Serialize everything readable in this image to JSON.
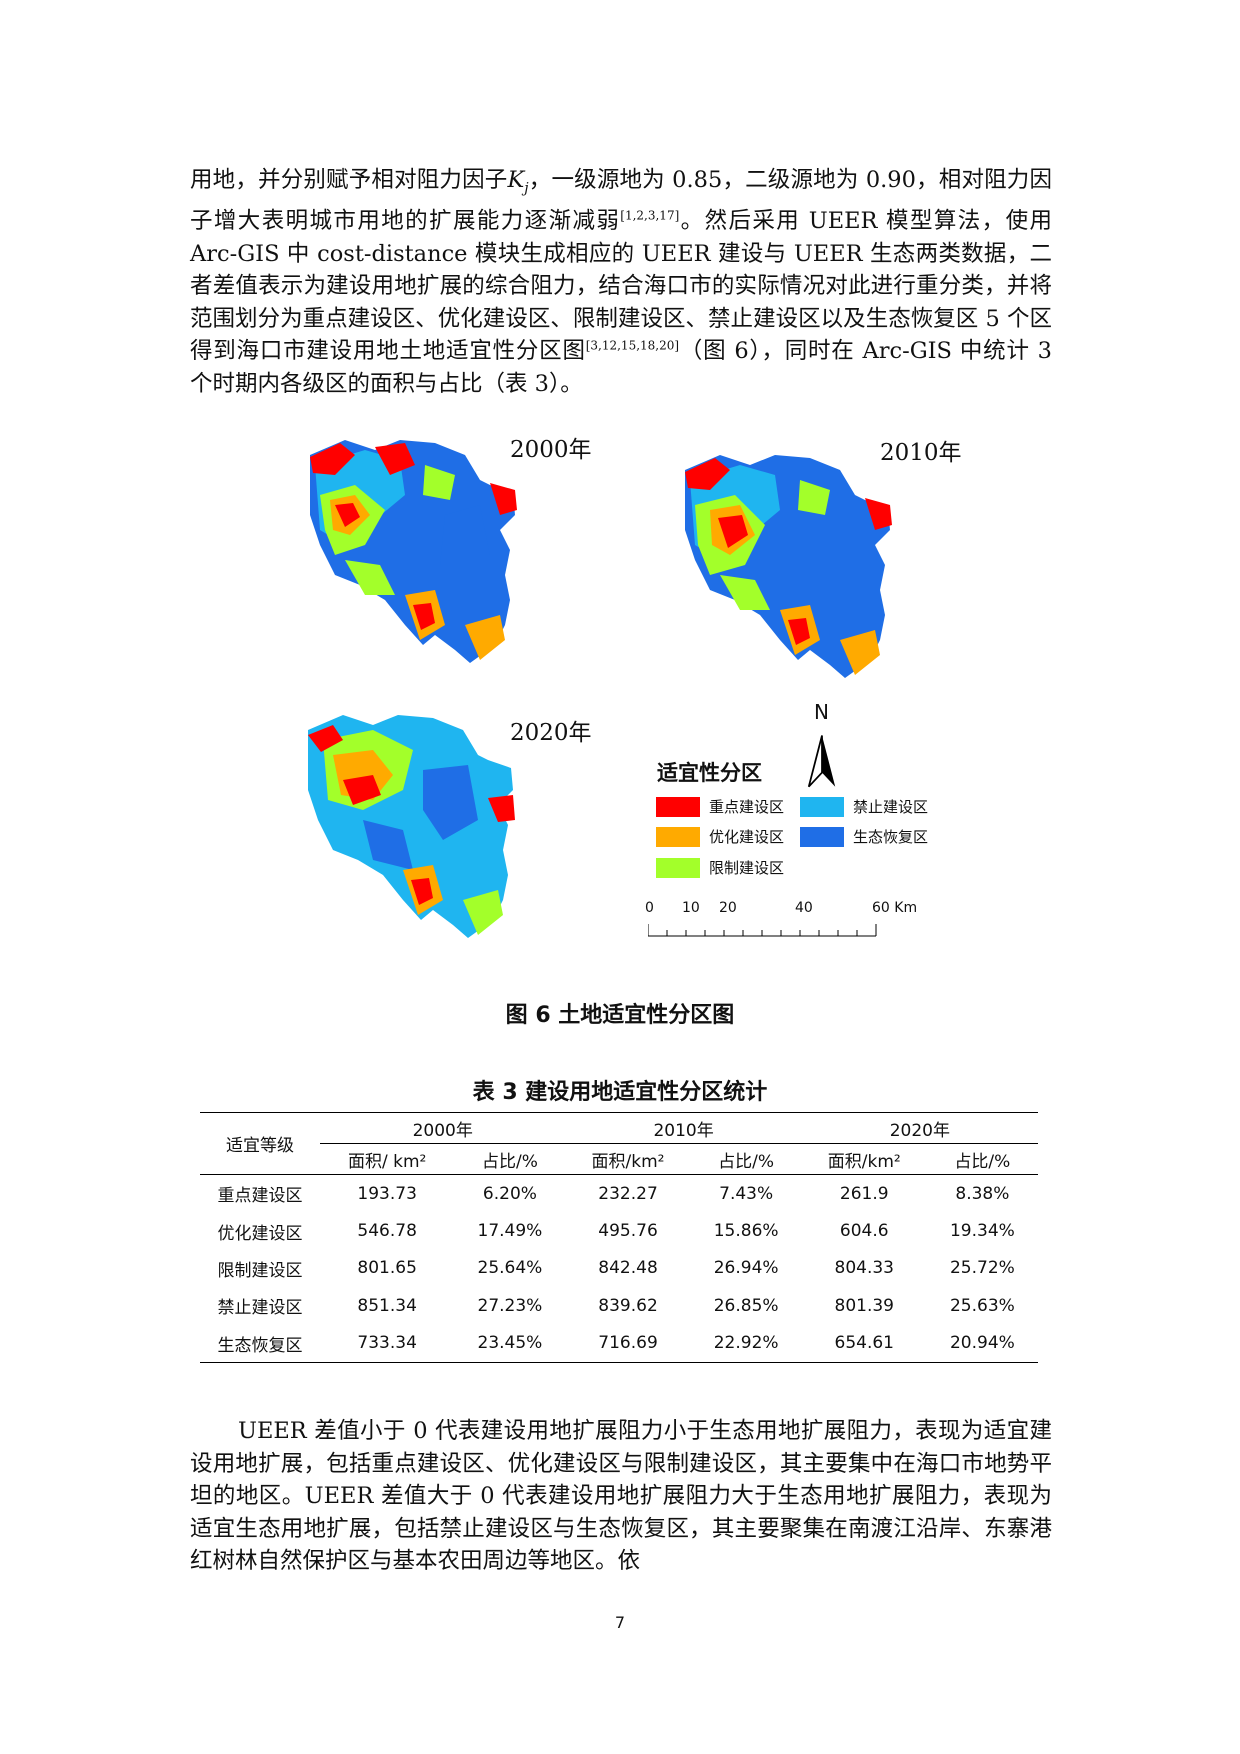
{
  "paragraph1": {
    "part1": "用地，并分别赋予相对阻力因子",
    "k_symbol": "K",
    "k_subscript": "j",
    "part2": "，一级源地为 0.85，二级源地为 0.90，相对阻力因子增大表明城市用地的扩展能力逐渐减弱",
    "ref1": "[1,2,3,17]",
    "part3": "。然后采用 UEER 模型算法，使用 Arc-GIS 中 cost-distance 模块生成相应的 UEER 建设与 UEER 生态两类数据，二者差值表示为建设用地扩展的综合阻力，结合海口市的实际情况对此进行重分类，并将范围划分为重点建设区、优化建设区、限制建设区、禁止建设区以及生态恢复区 5 个区得到海口市建设用地土地适宜性分区图",
    "ref2": "[3,12,15,18,20]",
    "part4": "（图 6），同时在 Arc-GIS 中统计 3 个时期内各级区的面积与占比（表 3）。"
  },
  "figure": {
    "map_labels": [
      "2000年",
      "2010年",
      "2020年"
    ],
    "north_label": "N",
    "legend_title": "适宜性分区",
    "legend": [
      {
        "label": "重点建设区",
        "color": "#ff0000"
      },
      {
        "label": "优化建设区",
        "color": "#ffaa00"
      },
      {
        "label": "限制建设区",
        "color": "#a3ff2a"
      },
      {
        "label": "禁止建设区",
        "color": "#1fb5f0"
      },
      {
        "label": "生态恢复区",
        "color": "#1f6ee6"
      }
    ],
    "scale_ticks": [
      "0",
      "10",
      "20",
      "40",
      "60 Km"
    ],
    "caption": "图 6 土地适宜性分区图"
  },
  "table": {
    "caption": "表 3 建设用地适宜性分区统计",
    "row_header": "适宜等级",
    "years": [
      "2000年",
      "2010年",
      "2020年"
    ],
    "sub_headers": [
      "面积/ km²",
      "占比/%",
      "面积/km²",
      "占比/%",
      "面积/km²",
      "占比/%"
    ],
    "rows": [
      {
        "name": "重点建设区",
        "values": [
          "193.73",
          "6.20%",
          "232.27",
          "7.43%",
          "261.9",
          "8.38%"
        ]
      },
      {
        "name": "优化建设区",
        "values": [
          "546.78",
          "17.49%",
          "495.76",
          "15.86%",
          "604.6",
          "19.34%"
        ]
      },
      {
        "name": "限制建设区",
        "values": [
          "801.65",
          "25.64%",
          "842.48",
          "26.94%",
          "804.33",
          "25.72%"
        ]
      },
      {
        "name": "禁止建设区",
        "values": [
          "851.34",
          "27.23%",
          "839.62",
          "26.85%",
          "801.39",
          "25.63%"
        ]
      },
      {
        "name": "生态恢复区",
        "values": [
          "733.34",
          "23.45%",
          "716.69",
          "22.92%",
          "654.61",
          "20.94%"
        ]
      }
    ]
  },
  "paragraph2": "UEER 差值小于 0 代表建设用地扩展阻力小于生态用地扩展阻力，表现为适宜建设用地扩展，包括重点建设区、优化建设区与限制建设区，其主要集中在海口市地势平坦的地区。UEER 差值大于 0 代表建设用地扩展阻力大于生态用地扩展阻力，表现为适宜生态用地扩展，包括禁止建设区与生态恢复区，其主要聚集在南渡江沿岸、东寨港红树林自然保护区与基本农田周边等地区。依",
  "page_number": "7"
}
